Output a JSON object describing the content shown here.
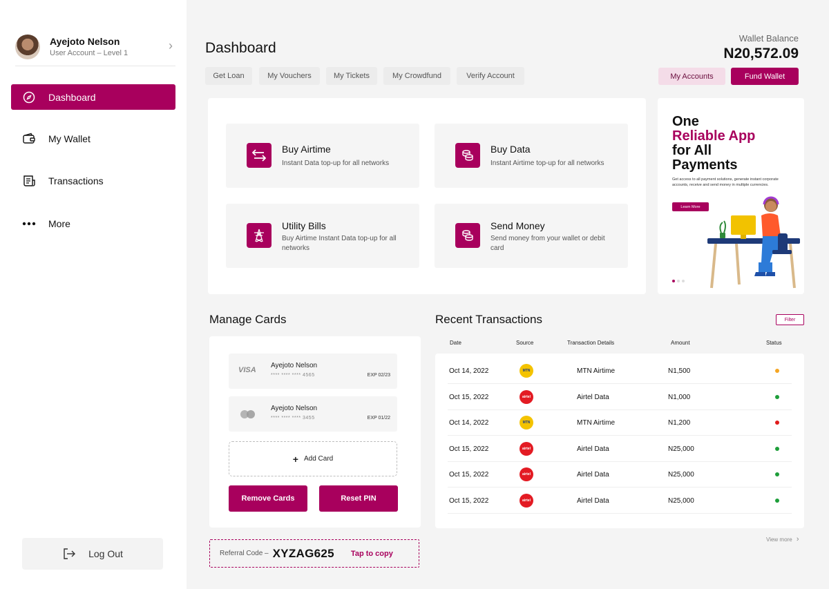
{
  "sidebar": {
    "profile": {
      "name": "Ayejoto Nelson",
      "level": "User Account – Level 1"
    },
    "nav": [
      {
        "label": "Dashboard",
        "icon": "compass-icon",
        "active": true
      },
      {
        "label": "My Wallet",
        "icon": "wallet-icon",
        "active": false
      },
      {
        "label": "Transactions",
        "icon": "receipt-icon",
        "active": false
      },
      {
        "label": "More",
        "icon": "more-dots-icon",
        "active": false
      }
    ],
    "logout_label": "Log Out"
  },
  "header": {
    "title": "Dashboard",
    "wallet_label": "Wallet Balance",
    "wallet_amount": "N20,572.09",
    "tabs": [
      "Get Loan",
      "My Vouchers",
      "My Tickets",
      "My Crowdfund",
      "Verify Account"
    ],
    "accounts_label": "My Accounts",
    "fund_label": "Fund Wallet"
  },
  "services": [
    {
      "title": "Buy Airtime",
      "desc": "Instant Data top-up for all networks",
      "icon": "transfer-arrows-icon"
    },
    {
      "title": "Buy Data",
      "desc": "Instant Airtime top-up for all networks",
      "icon": "coins-icon"
    },
    {
      "title": "Utility Bills",
      "desc": "Buy Airtime Instant Data top-up for all networks",
      "icon": "power-tower-icon"
    },
    {
      "title": "Send Money",
      "desc": "Send money from your wallet or debit card",
      "icon": "coins-icon"
    }
  ],
  "promo": {
    "line1": "One",
    "line2": "Reliable App",
    "line3": "for All",
    "line4": "Payments",
    "desc": "Get access to all payment solutions, generate instant corporate accounts, receive and send money in multiple currencies.",
    "button": "Learn More"
  },
  "manage_cards": {
    "title": "Manage Cards",
    "cards": [
      {
        "brand": "VISA",
        "holder": "Ayejoto Nelson",
        "number": "**** **** **** 4565",
        "exp": "EXP 02/23"
      },
      {
        "brand": "mastercard",
        "holder": "Ayejoto Nelson",
        "number": "**** **** **** 3455",
        "exp": "EXP 01/22"
      }
    ],
    "add_label": "Add Card",
    "remove_label": "Remove Cards",
    "reset_label": "Reset PIN"
  },
  "referral": {
    "label": "Referral Code –",
    "code": "XYZAG625",
    "copy": "Tap to copy"
  },
  "transactions": {
    "title": "Recent Transactions",
    "filter": "Filter",
    "headers": [
      "Date",
      "Source",
      "Transaction Details",
      "Amount",
      "Status"
    ],
    "rows": [
      {
        "date": "Oct 14, 2022",
        "source": "mtn",
        "detail": "MTN Airtime",
        "amount": "N1,500",
        "status": "#f5a623"
      },
      {
        "date": "Oct 15, 2022",
        "source": "airtel",
        "detail": "Airtel Data",
        "amount": "N1,000",
        "status": "#1e9e3a"
      },
      {
        "date": "Oct 14, 2022",
        "source": "mtn",
        "detail": "MTN Airtime",
        "amount": "N1,200",
        "status": "#e01b1b"
      },
      {
        "date": "Oct 15, 2022",
        "source": "airtel",
        "detail": "Airtel Data",
        "amount": "N25,000",
        "status": "#1e9e3a"
      },
      {
        "date": "Oct 15, 2022",
        "source": "airtel",
        "detail": "Airtel Data",
        "amount": "N25,000",
        "status": "#1e9e3a"
      },
      {
        "date": "Oct 15, 2022",
        "source": "airtel",
        "detail": "Airtel Data",
        "amount": "N25,000",
        "status": "#1e9e3a"
      }
    ],
    "view_more": "View more"
  },
  "colors": {
    "accent": "#a8005d",
    "accent_light": "#f4dce8",
    "background": "#f4f4f4"
  }
}
